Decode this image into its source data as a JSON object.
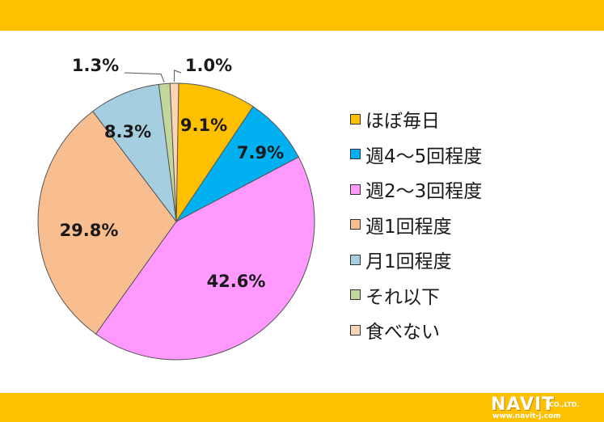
{
  "chart_data": {
    "type": "pie",
    "categories": [
      "ほぼ毎日",
      "週4～5回程度",
      "週2～3回程度",
      "週1回程度",
      "月1回程度",
      "それ以下",
      "食べない"
    ],
    "values": [
      9.1,
      7.9,
      42.6,
      29.8,
      8.3,
      1.3,
      1.0
    ],
    "value_labels": [
      "9.1%",
      "7.9%",
      "42.6%",
      "29.8%",
      "8.3%",
      "1.3%",
      "1.0%"
    ],
    "colors": [
      "#FFC000",
      "#00B0F0",
      "#FF99FF",
      "#F9BE8F",
      "#A5CFE0",
      "#C3D69B",
      "#FBD5B5"
    ],
    "start": "12 o'clock, clockwise, 食べない slice straddling top",
    "legend_position": "right"
  },
  "footer": {
    "logo_text": "NAVIT",
    "logo_suffix": "CO.,LTD.",
    "logo_url": "www.navit-j.com"
  },
  "colors": {
    "band": "#FFC000"
  }
}
